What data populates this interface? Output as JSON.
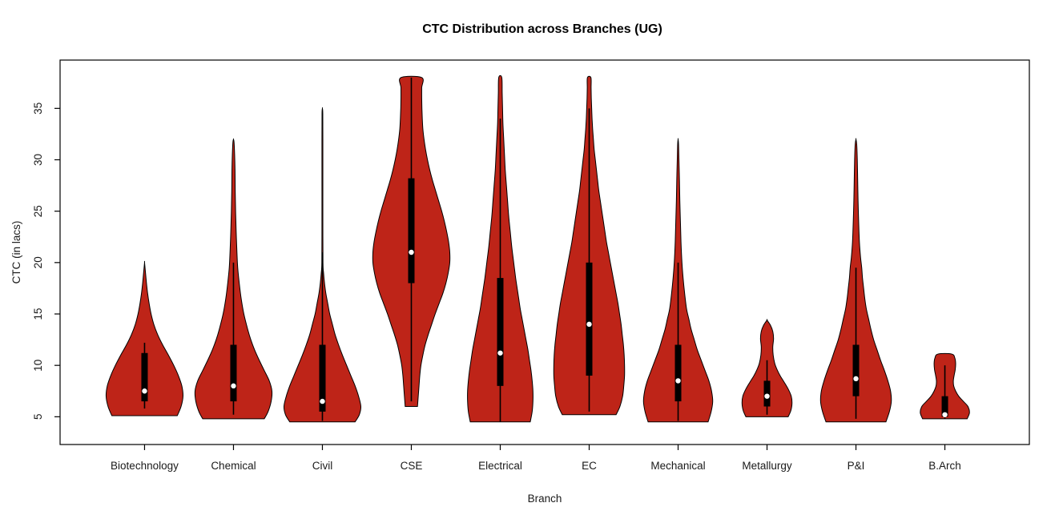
{
  "chart_data": {
    "type": "violin",
    "title": "CTC Distribution across Branches (UG)",
    "xlabel": "Branch",
    "ylabel": "CTC (in lacs)",
    "yticks": [
      5,
      10,
      15,
      20,
      25,
      30,
      35
    ],
    "y_range": [
      2.3,
      39.7
    ],
    "x_range": [
      0.05,
      10.95
    ],
    "grid": false,
    "legend": "none",
    "violin_fill": "#BE2418",
    "violin_outline": "#000000",
    "box_color": "#000000",
    "median_color": "#ffffff",
    "axis_color": "#000000",
    "label_color": "#1a1a1a",
    "categories": [
      "Biotechnology",
      "Chemical",
      "Civil",
      "CSE",
      "Electrical",
      "EC",
      "Mechanical",
      "Metallurgy",
      "P&I",
      "B.Arch"
    ],
    "series": [
      {
        "name": "Biotechnology",
        "min": 5.1,
        "max": 20,
        "median": 7.5,
        "q1": 6.5,
        "q3": 11.2,
        "whisker_low": 5.8,
        "whisker_high": 12.2,
        "profile": [
          [
            5.1,
            0.85
          ],
          [
            6,
            0.95
          ],
          [
            7,
            1.0
          ],
          [
            8,
            0.97
          ],
          [
            9,
            0.88
          ],
          [
            10,
            0.76
          ],
          [
            11,
            0.62
          ],
          [
            12,
            0.47
          ],
          [
            13,
            0.34
          ],
          [
            14,
            0.24
          ],
          [
            15,
            0.17
          ],
          [
            16,
            0.12
          ],
          [
            17,
            0.08
          ],
          [
            18,
            0.05
          ],
          [
            19,
            0.025
          ],
          [
            20,
            0
          ]
        ]
      },
      {
        "name": "Chemical",
        "min": 4.8,
        "max": 32,
        "median": 8,
        "q1": 6.5,
        "q3": 12,
        "whisker_low": 5.2,
        "whisker_high": 20,
        "profile": [
          [
            4.8,
            0.8
          ],
          [
            5.5,
            0.9
          ],
          [
            6.5,
            0.98
          ],
          [
            7.5,
            1.0
          ],
          [
            8.5,
            0.93
          ],
          [
            9.5,
            0.8
          ],
          [
            10.5,
            0.67
          ],
          [
            11.5,
            0.55
          ],
          [
            12.5,
            0.45
          ],
          [
            13.5,
            0.37
          ],
          [
            15,
            0.27
          ],
          [
            16.5,
            0.2
          ],
          [
            18,
            0.15
          ],
          [
            19.5,
            0.11
          ],
          [
            21,
            0.09
          ],
          [
            23,
            0.07
          ],
          [
            25,
            0.055
          ],
          [
            27,
            0.045
          ],
          [
            29,
            0.04
          ],
          [
            30.5,
            0.03
          ],
          [
            31.7,
            0.015
          ],
          [
            32,
            0
          ]
        ]
      },
      {
        "name": "Civil",
        "min": 4.5,
        "max": 35,
        "median": 6.5,
        "q1": 5.5,
        "q3": 12,
        "whisker_low": 4.6,
        "whisker_high": 21,
        "profile": [
          [
            4.5,
            0.85
          ],
          [
            5.2,
            0.96
          ],
          [
            6,
            1.0
          ],
          [
            7,
            0.94
          ],
          [
            8,
            0.85
          ],
          [
            9,
            0.74
          ],
          [
            10,
            0.63
          ],
          [
            11,
            0.52
          ],
          [
            12,
            0.42
          ],
          [
            13,
            0.33
          ],
          [
            14,
            0.26
          ],
          [
            15,
            0.19
          ],
          [
            16,
            0.14
          ],
          [
            17,
            0.09
          ],
          [
            18,
            0.055
          ],
          [
            19,
            0.03
          ],
          [
            20,
            0.015
          ],
          [
            24,
            0.012
          ],
          [
            28,
            0.012
          ],
          [
            32,
            0.012
          ],
          [
            34.5,
            0.01
          ],
          [
            35,
            0
          ]
        ]
      },
      {
        "name": "CSE",
        "min": 6,
        "max": 38,
        "median": 21,
        "q1": 18,
        "q3": 28.2,
        "whisker_low": 6.5,
        "whisker_high": 38,
        "profile": [
          [
            6,
            0.16
          ],
          [
            7,
            0.18
          ],
          [
            8,
            0.2
          ],
          [
            9,
            0.22
          ],
          [
            10,
            0.25
          ],
          [
            11,
            0.3
          ],
          [
            12,
            0.36
          ],
          [
            13,
            0.44
          ],
          [
            14,
            0.53
          ],
          [
            15,
            0.62
          ],
          [
            16,
            0.72
          ],
          [
            17,
            0.82
          ],
          [
            18,
            0.9
          ],
          [
            19,
            0.96
          ],
          [
            20,
            1.0
          ],
          [
            21,
            1.0
          ],
          [
            22,
            0.97
          ],
          [
            23,
            0.92
          ],
          [
            24,
            0.86
          ],
          [
            25,
            0.79
          ],
          [
            26,
            0.71
          ],
          [
            27,
            0.63
          ],
          [
            28,
            0.55
          ],
          [
            29,
            0.48
          ],
          [
            30,
            0.42
          ],
          [
            31,
            0.37
          ],
          [
            32,
            0.33
          ],
          [
            33,
            0.3
          ],
          [
            34,
            0.285
          ],
          [
            35,
            0.275
          ],
          [
            36,
            0.27
          ],
          [
            37,
            0.27
          ],
          [
            38,
            0.27
          ]
        ]
      },
      {
        "name": "Electrical",
        "min": 4.5,
        "max": 38,
        "median": 11.2,
        "q1": 8,
        "q3": 18.5,
        "whisker_low": 4.5,
        "whisker_high": 34,
        "profile": [
          [
            4.5,
            0.78
          ],
          [
            5.5,
            0.83
          ],
          [
            6.5,
            0.85
          ],
          [
            7.5,
            0.85
          ],
          [
            8.5,
            0.83
          ],
          [
            9.5,
            0.8
          ],
          [
            10.5,
            0.76
          ],
          [
            11.5,
            0.72
          ],
          [
            12.5,
            0.67
          ],
          [
            13.5,
            0.62
          ],
          [
            14.5,
            0.57
          ],
          [
            15.5,
            0.52
          ],
          [
            16.5,
            0.48
          ],
          [
            17.5,
            0.44
          ],
          [
            18.5,
            0.4
          ],
          [
            20,
            0.35
          ],
          [
            21.5,
            0.3
          ],
          [
            23,
            0.26
          ],
          [
            24.5,
            0.22
          ],
          [
            26,
            0.19
          ],
          [
            27.5,
            0.16
          ],
          [
            29,
            0.13
          ],
          [
            30.5,
            0.11
          ],
          [
            32,
            0.09
          ],
          [
            33.5,
            0.07
          ],
          [
            35,
            0.06
          ],
          [
            36.5,
            0.05
          ],
          [
            38,
            0.04
          ]
        ]
      },
      {
        "name": "EC",
        "min": 5.2,
        "max": 38,
        "median": 14,
        "q1": 9,
        "q3": 20,
        "whisker_low": 5.5,
        "whisker_high": 35,
        "profile": [
          [
            5.2,
            0.7
          ],
          [
            6,
            0.8
          ],
          [
            7,
            0.87
          ],
          [
            8,
            0.9
          ],
          [
            9,
            0.92
          ],
          [
            10,
            0.92
          ],
          [
            11,
            0.91
          ],
          [
            12,
            0.89
          ],
          [
            13,
            0.86
          ],
          [
            14,
            0.83
          ],
          [
            15,
            0.79
          ],
          [
            16,
            0.75
          ],
          [
            17,
            0.7
          ],
          [
            18,
            0.65
          ],
          [
            19,
            0.6
          ],
          [
            20,
            0.55
          ],
          [
            21,
            0.5
          ],
          [
            22,
            0.45
          ],
          [
            23,
            0.41
          ],
          [
            24,
            0.37
          ],
          [
            25,
            0.33
          ],
          [
            26,
            0.29
          ],
          [
            27,
            0.25
          ],
          [
            28,
            0.22
          ],
          [
            29,
            0.19
          ],
          [
            30,
            0.16
          ],
          [
            31,
            0.13
          ],
          [
            32,
            0.11
          ],
          [
            33,
            0.09
          ],
          [
            34,
            0.075
          ],
          [
            35,
            0.065
          ],
          [
            36,
            0.055
          ],
          [
            37,
            0.05
          ],
          [
            38,
            0.045
          ]
        ]
      },
      {
        "name": "Mechanical",
        "min": 4.5,
        "max": 32,
        "median": 8.5,
        "q1": 6.5,
        "q3": 12,
        "whisker_low": 4.6,
        "whisker_high": 20,
        "profile": [
          [
            4.5,
            0.78
          ],
          [
            5.5,
            0.86
          ],
          [
            6.5,
            0.9
          ],
          [
            7.5,
            0.87
          ],
          [
            8.5,
            0.8
          ],
          [
            9.5,
            0.7
          ],
          [
            10.5,
            0.6
          ],
          [
            11.5,
            0.5
          ],
          [
            12.5,
            0.42
          ],
          [
            13.5,
            0.34
          ],
          [
            14.5,
            0.28
          ],
          [
            15.5,
            0.22
          ],
          [
            17,
            0.17
          ],
          [
            18.5,
            0.13
          ],
          [
            20,
            0.1
          ],
          [
            22,
            0.075
          ],
          [
            24,
            0.06
          ],
          [
            26,
            0.045
          ],
          [
            28,
            0.035
          ],
          [
            30,
            0.022
          ],
          [
            31.5,
            0.012
          ],
          [
            32,
            0
          ]
        ]
      },
      {
        "name": "Metallurgy",
        "min": 5,
        "max": 14.4,
        "median": 7,
        "q1": 6,
        "q3": 8.5,
        "whisker_low": 5.2,
        "whisker_high": 10.5,
        "profile": [
          [
            5,
            0.55
          ],
          [
            5.6,
            0.62
          ],
          [
            6.3,
            0.65
          ],
          [
            7,
            0.63
          ],
          [
            7.7,
            0.55
          ],
          [
            8.4,
            0.44
          ],
          [
            9,
            0.34
          ],
          [
            9.6,
            0.26
          ],
          [
            10.2,
            0.2
          ],
          [
            11,
            0.16
          ],
          [
            11.8,
            0.15
          ],
          [
            12.6,
            0.17
          ],
          [
            13.3,
            0.15
          ],
          [
            13.9,
            0.09
          ],
          [
            14.4,
            0
          ]
        ]
      },
      {
        "name": "P&I",
        "min": 4.5,
        "max": 32,
        "median": 8.7,
        "q1": 7,
        "q3": 12,
        "whisker_low": 4.8,
        "whisker_high": 19.5,
        "profile": [
          [
            4.5,
            0.78
          ],
          [
            5.5,
            0.87
          ],
          [
            6.5,
            0.92
          ],
          [
            7.5,
            0.9
          ],
          [
            8.5,
            0.83
          ],
          [
            9.5,
            0.74
          ],
          [
            10.5,
            0.64
          ],
          [
            11.5,
            0.55
          ],
          [
            12.5,
            0.46
          ],
          [
            13.5,
            0.39
          ],
          [
            14.5,
            0.33
          ],
          [
            15.5,
            0.27
          ],
          [
            16.5,
            0.23
          ],
          [
            17.5,
            0.2
          ],
          [
            18.5,
            0.17
          ],
          [
            19.5,
            0.15
          ],
          [
            20.5,
            0.12
          ],
          [
            22,
            0.09
          ],
          [
            24,
            0.07
          ],
          [
            26,
            0.055
          ],
          [
            28,
            0.045
          ],
          [
            30,
            0.035
          ],
          [
            31.5,
            0.02
          ],
          [
            32,
            0
          ]
        ]
      },
      {
        "name": "B.Arch",
        "min": 4.8,
        "max": 11.1,
        "median": 5.2,
        "q1": 5,
        "q3": 7,
        "whisker_low": 4.8,
        "whisker_high": 10,
        "profile": [
          [
            4.8,
            0.58
          ],
          [
            5.4,
            0.64
          ],
          [
            6,
            0.6
          ],
          [
            6.5,
            0.48
          ],
          [
            7,
            0.36
          ],
          [
            7.5,
            0.28
          ],
          [
            8,
            0.23
          ],
          [
            8.5,
            0.22
          ],
          [
            9,
            0.24
          ],
          [
            9.6,
            0.27
          ],
          [
            10.2,
            0.28
          ],
          [
            10.7,
            0.26
          ],
          [
            11.1,
            0.18
          ]
        ]
      }
    ]
  }
}
